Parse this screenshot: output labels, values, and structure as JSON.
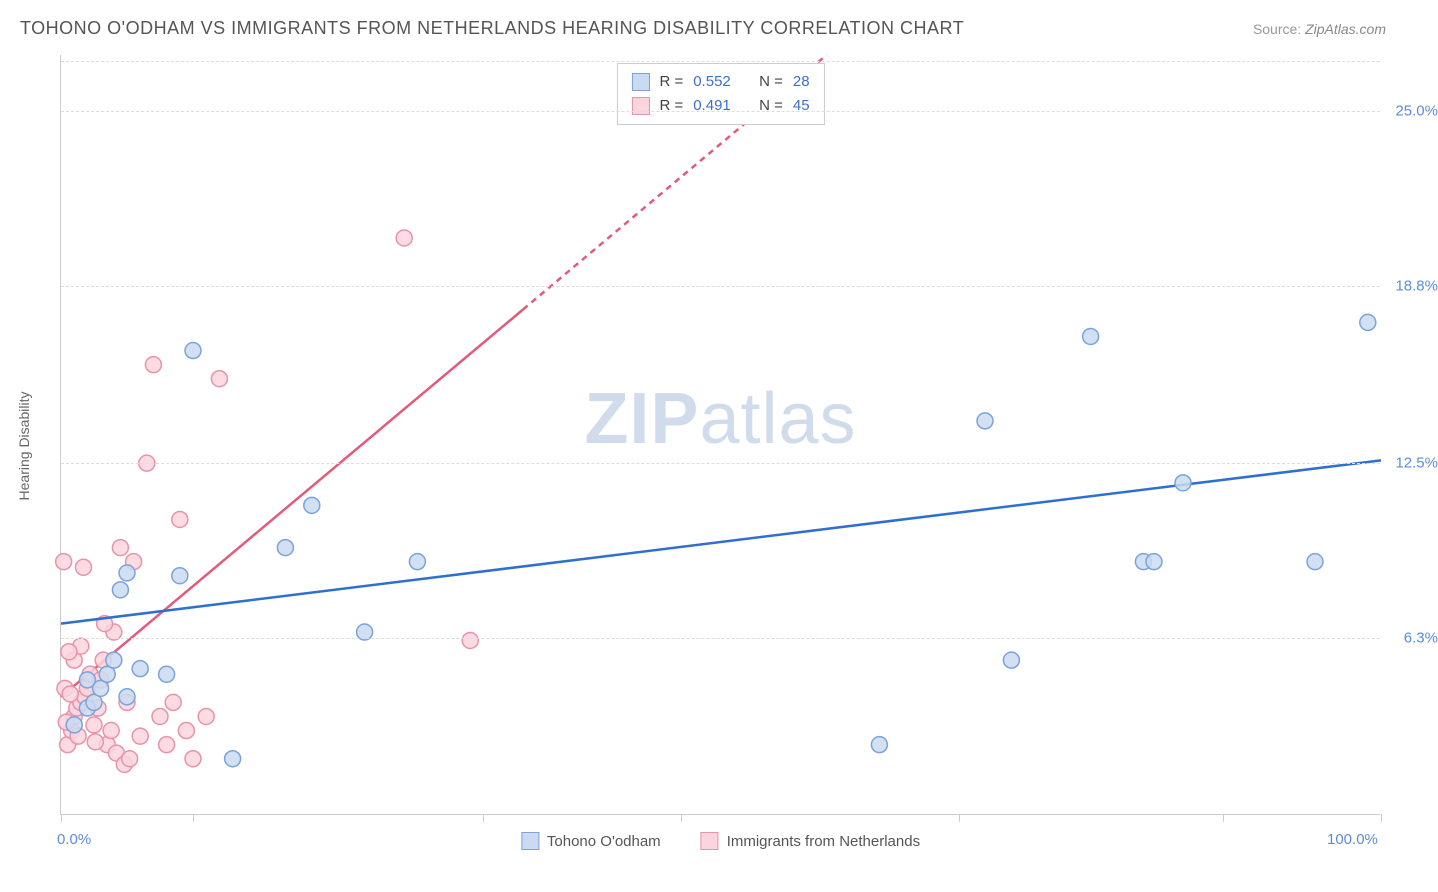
{
  "title": "TOHONO O'ODHAM VS IMMIGRANTS FROM NETHERLANDS HEARING DISABILITY CORRELATION CHART",
  "source_label": "Source:",
  "source_value": "ZipAtlas.com",
  "ylabel": "Hearing Disability",
  "watermark_a": "ZIP",
  "watermark_b": "atlas",
  "chart": {
    "type": "scatter",
    "xlim": [
      0,
      100
    ],
    "ylim": [
      0,
      27
    ],
    "background_color": "#ffffff",
    "grid_color": "#dddddd",
    "axis_color": "#cccccc",
    "y_gridlines": [
      6.3,
      12.5,
      18.8,
      25.0,
      26.8
    ],
    "y_tick_labels": [
      "6.3%",
      "12.5%",
      "18.8%",
      "25.0%"
    ],
    "y_tick_values": [
      6.3,
      12.5,
      18.8,
      25.0
    ],
    "x_ticks": [
      0,
      10,
      32,
      47,
      68,
      88,
      100
    ],
    "x_axis_labels": [
      {
        "x": 0,
        "text": "0.0%"
      },
      {
        "x": 100,
        "text": "100.0%"
      }
    ],
    "tick_label_color": "#5b8dd6",
    "label_fontsize": 14,
    "tick_fontsize": 15,
    "series": [
      {
        "name": "Tohono O'odham",
        "marker_fill": "#c9daf1",
        "marker_stroke": "#7ba3d9",
        "marker_radius": 8,
        "line_color": "#2f6fd0",
        "line_width": 2.5,
        "line_dash_after_x": 100,
        "R": "0.552",
        "N": "28",
        "regression": {
          "x1": 0,
          "y1": 6.8,
          "x2": 100,
          "y2": 12.6
        },
        "points": [
          {
            "x": 1,
            "y": 3.2
          },
          {
            "x": 2,
            "y": 3.8
          },
          {
            "x": 2.5,
            "y": 4.0
          },
          {
            "x": 3,
            "y": 4.5
          },
          {
            "x": 3.5,
            "y": 5.0
          },
          {
            "x": 4,
            "y": 5.5
          },
          {
            "x": 4.5,
            "y": 8.0
          },
          {
            "x": 5,
            "y": 8.6
          },
          {
            "x": 6,
            "y": 5.2
          },
          {
            "x": 8,
            "y": 5.0
          },
          {
            "x": 9,
            "y": 8.5
          },
          {
            "x": 10,
            "y": 16.5
          },
          {
            "x": 13,
            "y": 2.0
          },
          {
            "x": 17,
            "y": 9.5
          },
          {
            "x": 19,
            "y": 11.0
          },
          {
            "x": 23,
            "y": 6.5
          },
          {
            "x": 27,
            "y": 9.0
          },
          {
            "x": 62,
            "y": 2.5
          },
          {
            "x": 70,
            "y": 14.0
          },
          {
            "x": 72,
            "y": 5.5
          },
          {
            "x": 78,
            "y": 17.0
          },
          {
            "x": 82,
            "y": 9.0
          },
          {
            "x": 82.8,
            "y": 9.0
          },
          {
            "x": 85,
            "y": 11.8
          },
          {
            "x": 95,
            "y": 9.0
          },
          {
            "x": 99,
            "y": 17.5
          },
          {
            "x": 2,
            "y": 4.8
          },
          {
            "x": 5,
            "y": 4.2
          }
        ]
      },
      {
        "name": "Immigrants from Netherlands",
        "marker_fill": "#fbd5de",
        "marker_stroke": "#e893a8",
        "marker_radius": 8,
        "line_color": "#e35a7a",
        "line_width": 2.5,
        "line_dash_after_x": 35,
        "R": "0.491",
        "N": "45",
        "regression": {
          "x1": 0,
          "y1": 4.2,
          "x2": 58,
          "y2": 27.0
        },
        "points": [
          {
            "x": 0.5,
            "y": 2.5
          },
          {
            "x": 0.8,
            "y": 3.0
          },
          {
            "x": 1,
            "y": 3.5
          },
          {
            "x": 1.2,
            "y": 3.8
          },
          {
            "x": 1.5,
            "y": 4.0
          },
          {
            "x": 1.8,
            "y": 4.2
          },
          {
            "x": 1,
            "y": 5.5
          },
          {
            "x": 1.5,
            "y": 6.0
          },
          {
            "x": 2,
            "y": 4.5
          },
          {
            "x": 2.2,
            "y": 5.0
          },
          {
            "x": 2.5,
            "y": 3.2
          },
          {
            "x": 2.8,
            "y": 3.8
          },
          {
            "x": 3,
            "y": 4.8
          },
          {
            "x": 3.2,
            "y": 5.5
          },
          {
            "x": 3.5,
            "y": 2.5
          },
          {
            "x": 3.8,
            "y": 3.0
          },
          {
            "x": 4,
            "y": 6.5
          },
          {
            "x": 4.2,
            "y": 2.2
          },
          {
            "x": 4.5,
            "y": 9.5
          },
          {
            "x": 4.8,
            "y": 1.8
          },
          {
            "x": 5,
            "y": 4.0
          },
          {
            "x": 5.2,
            "y": 2.0
          },
          {
            "x": 5.5,
            "y": 9.0
          },
          {
            "x": 6,
            "y": 2.8
          },
          {
            "x": 6.5,
            "y": 12.5
          },
          {
            "x": 7,
            "y": 16.0
          },
          {
            "x": 7.5,
            "y": 3.5
          },
          {
            "x": 8,
            "y": 2.5
          },
          {
            "x": 8.5,
            "y": 4.0
          },
          {
            "x": 9,
            "y": 10.5
          },
          {
            "x": 9.5,
            "y": 3.0
          },
          {
            "x": 10,
            "y": 2.0
          },
          {
            "x": 11,
            "y": 3.5
          },
          {
            "x": 12,
            "y": 15.5
          },
          {
            "x": 0.3,
            "y": 4.5
          },
          {
            "x": 0.6,
            "y": 5.8
          },
          {
            "x": 1.3,
            "y": 2.8
          },
          {
            "x": 2.6,
            "y": 2.6
          },
          {
            "x": 3.3,
            "y": 6.8
          },
          {
            "x": 26,
            "y": 20.5
          },
          {
            "x": 31,
            "y": 6.2
          },
          {
            "x": 0.2,
            "y": 9.0
          },
          {
            "x": 1.7,
            "y": 8.8
          },
          {
            "x": 0.4,
            "y": 3.3
          },
          {
            "x": 0.7,
            "y": 4.3
          }
        ]
      }
    ]
  },
  "legend_top": {
    "R_label": "R =",
    "N_label": "N ="
  },
  "legend_bottom": {
    "items": [
      "Tohono O'odham",
      "Immigrants from Netherlands"
    ]
  }
}
